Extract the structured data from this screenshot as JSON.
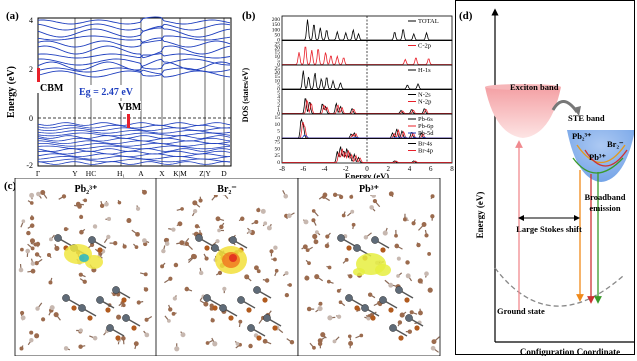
{
  "panel_a": {
    "label": "(a)",
    "ylabel": "Energy (eV)",
    "yticks": [
      "4",
      "2",
      "0",
      "-2"
    ],
    "xticks": [
      "Γ",
      "Y",
      "HC",
      "H₁",
      "A",
      "X",
      "K|M",
      "Z|Y",
      "D"
    ],
    "cbm_label": "CBM",
    "vbm_label": "VBM",
    "eg_label": "Eg = 2.47 eV"
  },
  "panel_b": {
    "label": "(b)",
    "ylabel": "DOS (states/eV)",
    "xlabel": "Energy (eV)",
    "xticks": [
      "-8",
      "-6",
      "-4",
      "-2",
      "0",
      "2",
      "4",
      "6",
      "8"
    ],
    "subplots": [
      {
        "legend": [
          "TOTAL"
        ],
        "yticks": [
          "200",
          "150",
          "100",
          "50",
          "0"
        ],
        "colors": [
          "#000000"
        ]
      },
      {
        "legend": [
          "C-2p"
        ],
        "yticks": [
          "25",
          "20",
          "15",
          "10",
          "5",
          "0"
        ],
        "colors": [
          "#e8202a"
        ]
      },
      {
        "legend": [
          "H-1s"
        ],
        "yticks": [
          "25",
          "20",
          "15",
          "10",
          "5",
          "0"
        ],
        "colors": [
          "#000000"
        ]
      },
      {
        "legend": [
          "N-2s",
          "N-2p"
        ],
        "yticks": [
          "5",
          "4",
          "3",
          "2",
          "1",
          "0"
        ],
        "colors": [
          "#000000",
          "#e8202a"
        ]
      },
      {
        "legend": [
          "Pb-6s",
          "Pb-6p",
          "Pb-5d"
        ],
        "yticks": [
          "15",
          "10",
          "5",
          "0"
        ],
        "colors": [
          "#000000",
          "#e8202a",
          "#1f3fbf"
        ]
      },
      {
        "legend": [
          "Br-4s",
          "Br-4p"
        ],
        "yticks": [
          "75",
          "50",
          "25",
          "0"
        ],
        "colors": [
          "#000000",
          "#e8202a"
        ]
      }
    ]
  },
  "panel_c": {
    "label": "(c)",
    "titles": [
      "Pb₂³⁺",
      "Br₂⁻",
      "Pb³⁺"
    ]
  },
  "panel_d": {
    "label": "(d)",
    "exciton_band": "Exciton band",
    "ste_band": "STE band",
    "pb2": "Pb₂³⁺",
    "br2": "Br₂⁻",
    "pb3": "Pb³⁺",
    "broadband": "Broadband",
    "emission": "emission",
    "stokes": "Large Stokes shift",
    "ground": "Ground state",
    "ylabel": "Energy (eV)",
    "xlabel": "Configuration Coordinate"
  }
}
